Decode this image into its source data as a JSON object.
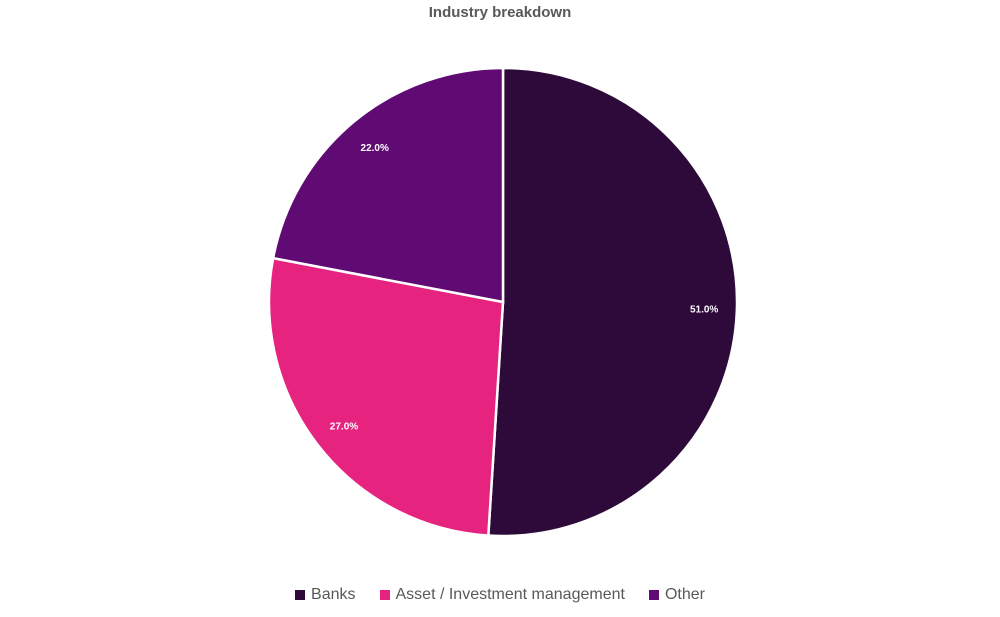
{
  "chart_data": {
    "type": "pie",
    "title": "Industry breakdown",
    "categories": [
      "Banks",
      "Asset / Investment management",
      "Other"
    ],
    "values": [
      51.0,
      27.0,
      22.0
    ],
    "labels": [
      "51.0%",
      "27.0%",
      "22.0%"
    ],
    "colors": [
      "#2E0A3B",
      "#E6237F",
      "#600A74"
    ],
    "start": "top",
    "direction": "clockwise",
    "legend": "bottom"
  }
}
